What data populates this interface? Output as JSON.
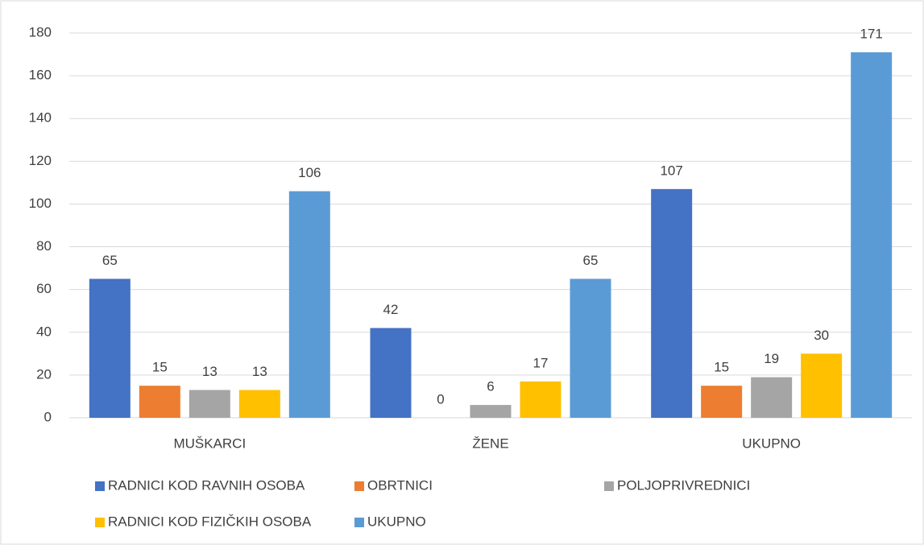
{
  "chart_data": {
    "type": "bar",
    "categories": [
      "MUŠKARCI",
      "ŽENE",
      "UKUPNO"
    ],
    "series": [
      {
        "name": "RADNICI KOD RAVNIH OSOBA",
        "color": "#4472c4",
        "values": [
          65,
          42,
          107
        ]
      },
      {
        "name": "OBRTNICI",
        "color": "#ed7d31",
        "values": [
          15,
          0,
          15
        ]
      },
      {
        "name": "POLJOPRIVREDNICI",
        "color": "#a5a5a5",
        "values": [
          13,
          6,
          19
        ]
      },
      {
        "name": "RADNICI KOD FIZIČKIH OSOBA",
        "color": "#ffc000",
        "values": [
          13,
          17,
          30
        ]
      },
      {
        "name": "UKUPNO",
        "color": "#5b9bd5",
        "values": [
          106,
          65,
          171
        ]
      }
    ],
    "ylim": [
      0,
      180
    ],
    "yticks": [
      0,
      20,
      40,
      60,
      80,
      100,
      120,
      140,
      160,
      180
    ],
    "grid": true,
    "legend": "bottom"
  }
}
